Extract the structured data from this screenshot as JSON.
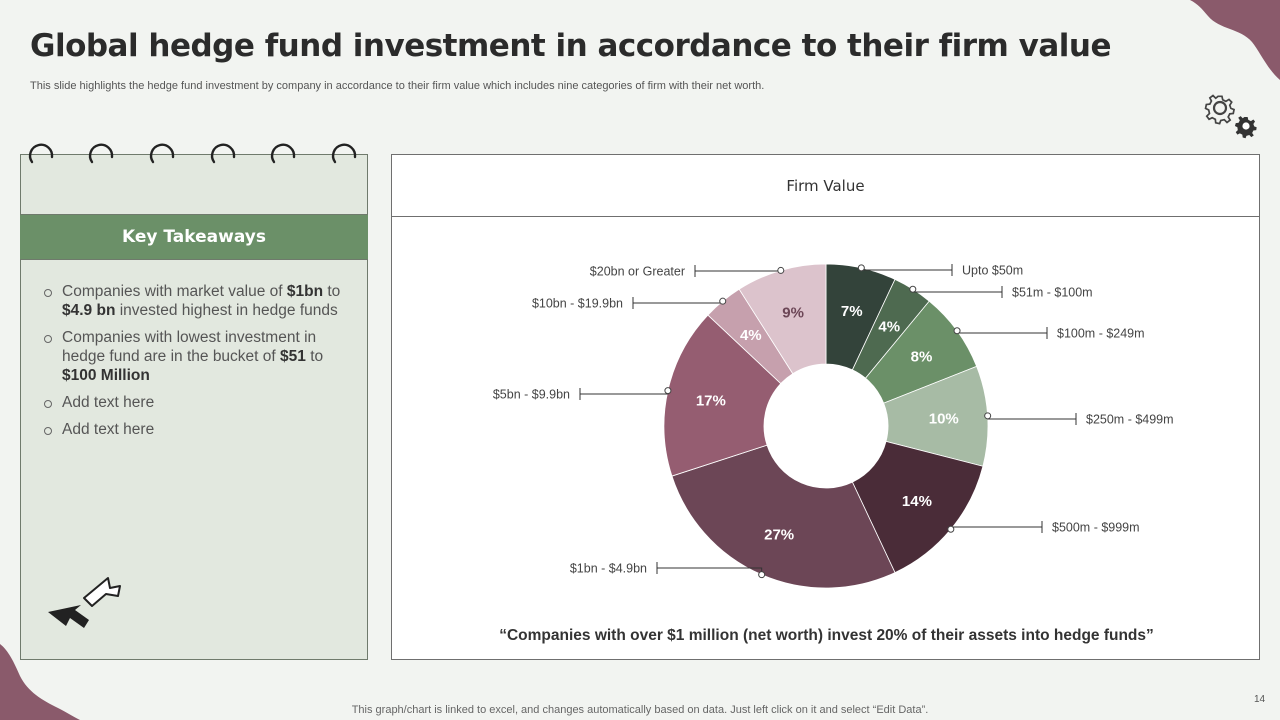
{
  "title": "Global hedge fund investment in accordance to their firm value",
  "subtitle": "This slide highlights the hedge fund investment by company in accordance to their firm value which includes nine categories of firm with their net worth.",
  "takeaways": {
    "header": "Key Takeaways",
    "items": [
      {
        "parts": [
          "Companies with market value  of ",
          "$1bn",
          " to ",
          "$4.9 bn",
          " invested highest in hedge funds"
        ]
      },
      {
        "parts": [
          "Companies with lowest investment  in hedge fund are in the bucket of ",
          "$51",
          " to ",
          "$100 Million",
          ""
        ]
      },
      {
        "parts": [
          "Add text here"
        ]
      },
      {
        "parts": [
          "Add text here"
        ]
      }
    ]
  },
  "panel": {
    "header": "Firm Value",
    "quote": "“Companies with over $1 million (net worth) invest 20% of their assets into hedge funds”"
  },
  "chart_data": {
    "type": "pie",
    "variant": "donut",
    "title": "Firm Value",
    "unit": "%",
    "slices": [
      {
        "label": "Upto $50m",
        "value": 7,
        "display": "7%",
        "color": "#33433a"
      },
      {
        "label": "$51m - $100m",
        "value": 4,
        "display": "4%",
        "color": "#4e6a50"
      },
      {
        "label": "$100m - $249m",
        "value": 8,
        "display": "8%",
        "color": "#6b9068"
      },
      {
        "label": "$250m - $499m",
        "value": 10,
        "display": "10%",
        "color": "#a7bba5"
      },
      {
        "label": "$500m - $999m",
        "value": 14,
        "display": "14%",
        "color": "#4a2c38"
      },
      {
        "label": "$1bn - $4.9bn",
        "value": 27,
        "display": "27%",
        "color": "#6c4656"
      },
      {
        "label": "$5bn - $9.9bn",
        "value": 17,
        "display": "17%",
        "color": "#955d71"
      },
      {
        "label": "$10bn - $19.9bn",
        "value": 4,
        "display": "4%",
        "color": "#c6a0ad"
      },
      {
        "label": "$20bn or Greater",
        "value": 9,
        "display": "9%",
        "color": "#dcc3cc"
      }
    ]
  },
  "footer": "This graph/chart is linked to excel,  and changes automatically based on data. Just left click on it and select “Edit Data”.",
  "page_number": "14",
  "icons": {
    "gears": "gears-icon",
    "arrows": "cursor-arrows-icon"
  },
  "colors": {
    "accent_green": "#6b9068",
    "accent_mauve": "#955d71",
    "background": "#f2f4f1"
  }
}
